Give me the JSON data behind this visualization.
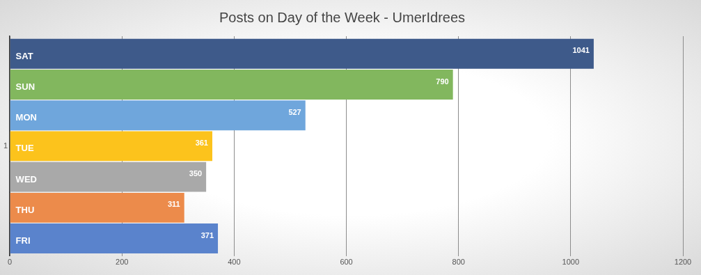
{
  "chart_data": {
    "type": "bar",
    "orientation": "horizontal",
    "title": "Posts on Day of the Week - UmerIdrees",
    "categories": [
      "1"
    ],
    "series": [
      {
        "name": "SAT",
        "color": "#3e5a8a",
        "values": [
          1041
        ]
      },
      {
        "name": "SUN",
        "color": "#82b75e",
        "values": [
          790
        ]
      },
      {
        "name": "MON",
        "color": "#6fa6dc",
        "values": [
          527
        ]
      },
      {
        "name": "TUE",
        "color": "#fcc31c",
        "values": [
          361
        ]
      },
      {
        "name": "WED",
        "color": "#a9a9a9",
        "values": [
          350
        ]
      },
      {
        "name": "THU",
        "color": "#ec8b4b",
        "values": [
          311
        ]
      },
      {
        "name": "FRI",
        "color": "#5a83cc",
        "values": [
          371
        ]
      }
    ],
    "xlim": [
      0,
      1200
    ],
    "xticks": [
      0,
      200,
      400,
      600,
      800,
      1000,
      1200
    ],
    "grid": "x",
    "legend": false,
    "data_labels": true
  }
}
